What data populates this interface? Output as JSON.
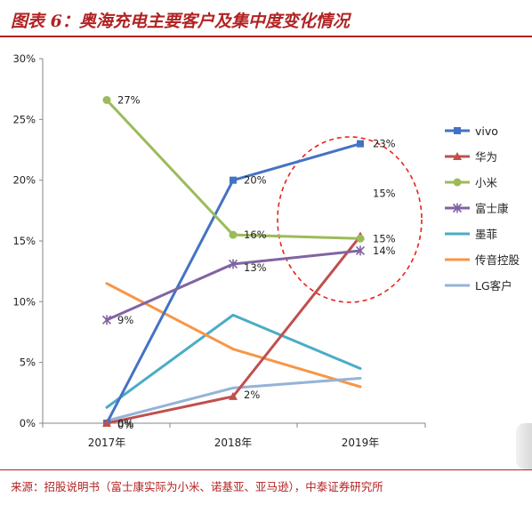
{
  "header": {
    "title": "图表 6：奥海充电主要客户及集中度变化情况"
  },
  "footer": {
    "source": "来源：招股说明书（富士康实际为小米、诺基亚、亚马逊），中泰证券研究所"
  },
  "chart_data": {
    "type": "line",
    "title": "",
    "xlabel": "",
    "ylabel": "",
    "categories": [
      "2017年",
      "2018年",
      "2019年"
    ],
    "y_ticks": [
      "0%",
      "5%",
      "10%",
      "15%",
      "20%",
      "25%",
      "30%"
    ],
    "ylim": [
      0,
      0.3
    ],
    "grid": false,
    "legend_position": "right",
    "series": [
      {
        "name": "vivo",
        "color": "#4472c4",
        "marker": "square",
        "values": [
          0.0,
          0.2,
          0.23
        ],
        "labels": [
          "0%",
          "20%",
          "23%"
        ]
      },
      {
        "name": "华为",
        "color": "#c0504d",
        "marker": "triangle",
        "values": [
          0.0,
          0.022,
          0.154
        ],
        "labels": [
          "0%",
          "2%",
          "15%"
        ]
      },
      {
        "name": "小米",
        "color": "#9bbb59",
        "marker": "circle",
        "values": [
          0.266,
          0.155,
          0.152
        ],
        "labels": [
          "27%",
          "16%",
          "15%"
        ]
      },
      {
        "name": "富士康",
        "color": "#8064a2",
        "marker": "star",
        "values": [
          0.085,
          0.131,
          0.142
        ],
        "labels": [
          "9%",
          "13%",
          "14%"
        ]
      },
      {
        "name": "墨菲",
        "color": "#4bacc6",
        "marker": "none",
        "values": [
          0.013,
          0.089,
          0.045
        ],
        "labels": []
      },
      {
        "name": "传音控股",
        "color": "#f79646",
        "marker": "none",
        "values": [
          0.115,
          0.061,
          0.03
        ],
        "labels": []
      },
      {
        "name": "LG客户",
        "color": "#95b3d7",
        "marker": "none",
        "values": [
          0.002,
          0.029,
          0.037
        ],
        "labels": []
      }
    ],
    "highlight": {
      "shape": "dashed-ellipse",
      "color": "#e8221b",
      "category": "2019年"
    }
  }
}
